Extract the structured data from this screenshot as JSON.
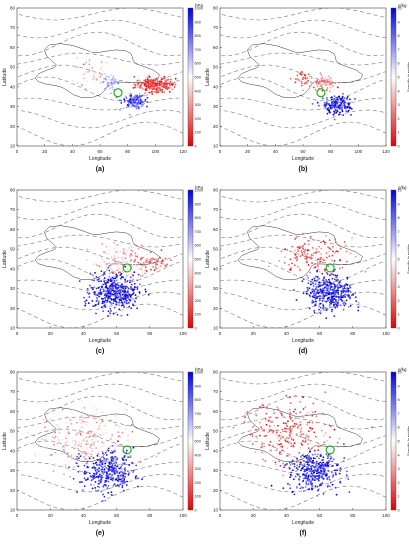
{
  "figure": {
    "panels": [
      {
        "label": "(a)",
        "cbar_unit": "hPa",
        "cbar_ticks": [
          "1000",
          "900",
          "800",
          "700",
          "600",
          "500",
          "400",
          "300",
          "200",
          "100",
          "0"
        ],
        "cbar_title": "",
        "xticks": [
          "0",
          "20",
          "40",
          "60",
          "80",
          "100",
          "120"
        ],
        "yticks": [
          "10",
          "20",
          "30",
          "40",
          "50",
          "60",
          "70",
          "80"
        ],
        "xlabel": "Longitude",
        "ylabel": "Latitude"
      },
      {
        "label": "(b)",
        "cbar_unit": "g/kg",
        "cbar_ticks": [
          "10",
          "9",
          "8",
          "7",
          "6",
          "5",
          "4",
          "3",
          "2",
          "1",
          "0"
        ],
        "cbar_title": "Specific humidity",
        "xticks": [
          "0",
          "20",
          "40",
          "60",
          "80",
          "100",
          "120"
        ],
        "yticks": [
          "10",
          "20",
          "30",
          "40",
          "50",
          "60",
          "70",
          "80"
        ],
        "xlabel": "Longitude",
        "ylabel": "Latitude"
      },
      {
        "label": "(c)",
        "cbar_unit": "hPa",
        "cbar_ticks": [
          "1000",
          "900",
          "800",
          "700",
          "600",
          "500",
          "400",
          "300",
          "200",
          "100",
          "0"
        ],
        "cbar_title": "",
        "xticks": [
          "0",
          "20",
          "40",
          "60",
          "80",
          "100"
        ],
        "yticks": [
          "10",
          "20",
          "30",
          "40",
          "50",
          "60",
          "70",
          "80"
        ],
        "xlabel": "Longitude",
        "ylabel": "Latitude"
      },
      {
        "label": "(d)",
        "cbar_unit": "g/kg",
        "cbar_ticks": [
          "10",
          "9",
          "8",
          "7",
          "6",
          "5",
          "4",
          "3",
          "2",
          "1",
          "0"
        ],
        "cbar_title": "Specific humidity",
        "xticks": [
          "0",
          "20",
          "40",
          "60",
          "80",
          "100"
        ],
        "yticks": [
          "10",
          "20",
          "30",
          "40",
          "50",
          "60",
          "70",
          "80"
        ],
        "xlabel": "Longitude",
        "ylabel": "Latitude"
      },
      {
        "label": "(e)",
        "cbar_unit": "hPa",
        "cbar_ticks": [
          "1000",
          "900",
          "800",
          "700",
          "600",
          "500",
          "400",
          "300",
          "200",
          "100",
          "0"
        ],
        "cbar_title": "",
        "xticks": [
          "0",
          "20",
          "40",
          "60",
          "80",
          "100"
        ],
        "yticks": [
          "10",
          "20",
          "30",
          "40",
          "50",
          "60",
          "70",
          "80"
        ],
        "xlabel": "Longitude",
        "ylabel": "Latitude"
      },
      {
        "label": "(f)",
        "cbar_unit": "g/kg",
        "cbar_ticks": [
          "10",
          "9",
          "8",
          "7",
          "6",
          "5",
          "4",
          "3",
          "2",
          "1",
          "0"
        ],
        "cbar_title": "Specific humidity",
        "xticks": [
          "0",
          "20",
          "40",
          "60",
          "80",
          "100"
        ],
        "yticks": [
          "10",
          "20",
          "30",
          "40",
          "50",
          "60",
          "70",
          "80"
        ],
        "xlabel": "Longitude",
        "ylabel": "Latitude"
      }
    ]
  },
  "chart_data": [
    {
      "type": "scatter",
      "panel": "(a)",
      "variable": "pressure",
      "unit": "hPa",
      "xlabel": "Longitude",
      "ylabel": "Latitude",
      "xlim": [
        0,
        120
      ],
      "ylim": [
        10,
        80
      ],
      "clim": [
        0,
        1000
      ],
      "colormap": {
        "low": "#e00000",
        "mid": "#ffffff",
        "high": "#0000e6"
      },
      "source_region": {
        "lon": 73,
        "lat": 37
      },
      "clusters": [
        {
          "lon": 100,
          "lat": 41,
          "spread_lon": 12,
          "spread_lat": 3,
          "value": 150,
          "count": 260
        },
        {
          "lon": 84,
          "lat": 33,
          "spread_lon": 7,
          "spread_lat": 3,
          "value": 820,
          "count": 140
        },
        {
          "lon": 68,
          "lat": 42,
          "spread_lon": 5,
          "spread_lat": 3,
          "value": 650,
          "count": 60
        },
        {
          "lon": 55,
          "lat": 48,
          "spread_lon": 10,
          "spread_lat": 7,
          "value": 400,
          "count": 60
        }
      ]
    },
    {
      "type": "scatter",
      "panel": "(b)",
      "variable": "specific humidity",
      "unit": "g/kg",
      "xlabel": "Longitude",
      "ylabel": "Latitude",
      "xlim": [
        0,
        120
      ],
      "ylim": [
        10,
        80
      ],
      "clim": [
        0,
        10
      ],
      "colormap": {
        "low": "#e00000",
        "mid": "#ffffff",
        "high": "#0000e6"
      },
      "source_region": {
        "lon": 73,
        "lat": 37
      },
      "clusters": [
        {
          "lon": 85,
          "lat": 31,
          "spread_lon": 8,
          "spread_lat": 4,
          "value": 9,
          "count": 200
        },
        {
          "lon": 75,
          "lat": 42,
          "spread_lon": 7,
          "spread_lat": 3,
          "value": 3,
          "count": 80
        },
        {
          "lon": 60,
          "lat": 44,
          "spread_lon": 6,
          "spread_lat": 4,
          "value": 2,
          "count": 40
        }
      ]
    },
    {
      "type": "scatter",
      "panel": "(c)",
      "variable": "pressure",
      "unit": "hPa",
      "xlabel": "Longitude",
      "ylabel": "Latitude",
      "xlim": [
        0,
        110
      ],
      "ylim": [
        0,
        85
      ],
      "clim": [
        0,
        1000
      ],
      "colormap": {
        "low": "#e00000",
        "mid": "#ffffff",
        "high": "#0000e6"
      },
      "source_region": {
        "lon": 73,
        "lat": 37
      },
      "clusters": [
        {
          "lon": 65,
          "lat": 22,
          "spread_lon": 13,
          "spread_lat": 9,
          "value": 920,
          "count": 420
        },
        {
          "lon": 70,
          "lat": 40,
          "spread_lon": 16,
          "spread_lat": 9,
          "value": 380,
          "count": 160
        },
        {
          "lon": 90,
          "lat": 40,
          "spread_lon": 8,
          "spread_lat": 4,
          "value": 200,
          "count": 60
        }
      ]
    },
    {
      "type": "scatter",
      "panel": "(d)",
      "variable": "specific humidity",
      "unit": "g/kg",
      "xlabel": "Longitude",
      "ylabel": "Latitude",
      "xlim": [
        0,
        110
      ],
      "ylim": [
        0,
        85
      ],
      "clim": [
        0,
        10
      ],
      "colormap": {
        "low": "#e00000",
        "mid": "#ffffff",
        "high": "#0000e6"
      },
      "source_region": {
        "lon": 73,
        "lat": 37
      },
      "clusters": [
        {
          "lon": 73,
          "lat": 22,
          "spread_lon": 13,
          "spread_lat": 9,
          "value": 9,
          "count": 420
        },
        {
          "lon": 62,
          "lat": 44,
          "spread_lon": 18,
          "spread_lat": 9,
          "value": 2,
          "count": 160
        }
      ]
    },
    {
      "type": "scatter",
      "panel": "(e)",
      "variable": "pressure",
      "unit": "hPa",
      "xlabel": "Longitude",
      "ylabel": "Latitude",
      "xlim": [
        0,
        110
      ],
      "ylim": [
        0,
        85
      ],
      "clim": [
        0,
        1000
      ],
      "colormap": {
        "low": "#e00000",
        "mid": "#ffffff",
        "high": "#0000e6"
      },
      "source_region": {
        "lon": 73,
        "lat": 37
      },
      "clusters": [
        {
          "lon": 60,
          "lat": 24,
          "spread_lon": 14,
          "spread_lat": 11,
          "value": 880,
          "count": 380
        },
        {
          "lon": 45,
          "lat": 45,
          "spread_lon": 26,
          "spread_lat": 15,
          "value": 380,
          "count": 260
        }
      ]
    },
    {
      "type": "scatter",
      "panel": "(f)",
      "variable": "specific humidity",
      "unit": "g/kg",
      "xlabel": "Longitude",
      "ylabel": "Latitude",
      "xlim": [
        0,
        110
      ],
      "ylim": [
        0,
        85
      ],
      "clim": [
        0,
        10
      ],
      "colormap": {
        "low": "#e00000",
        "mid": "#ffffff",
        "high": "#0000e6"
      },
      "source_region": {
        "lon": 73,
        "lat": 37
      },
      "clusters": [
        {
          "lon": 62,
          "lat": 24,
          "spread_lon": 14,
          "spread_lat": 10,
          "value": 9,
          "count": 380
        },
        {
          "lon": 45,
          "lat": 48,
          "spread_lon": 26,
          "spread_lat": 15,
          "value": 2,
          "count": 260
        }
      ]
    }
  ]
}
